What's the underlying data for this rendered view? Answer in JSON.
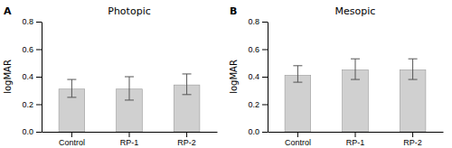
{
  "chart_data": [
    {
      "type": "bar",
      "title": "Photopic",
      "annotations": [
        "A"
      ],
      "ylabel": "logMAR",
      "categories": [
        "Control",
        "RP-1",
        "RP-2"
      ],
      "values": [
        0.31,
        0.31,
        0.34
      ],
      "yerr_upper": [
        0.07,
        0.09,
        0.08
      ],
      "yerr_lower": [
        0.06,
        0.08,
        0.07
      ],
      "color": "#d0d0d0",
      "ylim": [
        0,
        0.8
      ],
      "yticks": [
        {
          "value": 0,
          "label": "0.0"
        },
        0.2,
        0.4,
        0.6,
        0.8
      ]
    },
    {
      "type": "bar",
      "title": "Mesopic",
      "annotations": [
        "B"
      ],
      "ylabel": "logMAR",
      "categories": [
        "Control",
        "RP-1",
        "RP-2"
      ],
      "values": [
        0.41,
        0.45,
        0.45
      ],
      "yerr_upper": [
        0.07,
        0.08,
        0.08
      ],
      "yerr_lower": [
        0.05,
        0.07,
        0.07
      ],
      "color": "#d0d0d0",
      "ylim": [
        0,
        0.8
      ],
      "yticks": [
        {
          "value": 0,
          "label": "0.0"
        },
        0.2,
        0.4,
        0.6,
        0.8
      ]
    }
  ]
}
